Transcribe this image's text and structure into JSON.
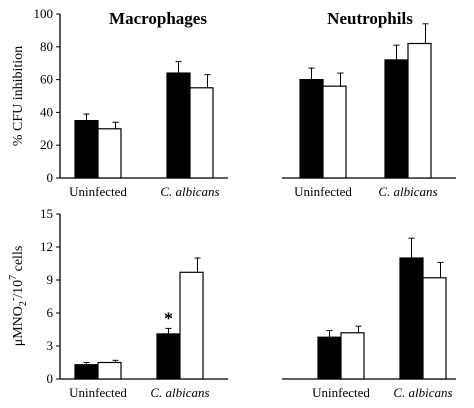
{
  "chart_data": [
    {
      "type": "bar",
      "panel": "top-left",
      "title": "Macrophages",
      "ylabel": "% CFU inhibition",
      "ylim": [
        0,
        100
      ],
      "yticks": [
        "0",
        "20",
        "40",
        "60",
        "80",
        "100"
      ],
      "categories": [
        "Uninfected",
        "C. albicans"
      ],
      "series": [
        {
          "color": "#000000",
          "values": [
            35,
            64
          ],
          "errors": [
            4,
            7
          ]
        },
        {
          "color": "#ffffff",
          "values": [
            30,
            55
          ],
          "errors": [
            4,
            8
          ]
        }
      ]
    },
    {
      "type": "bar",
      "panel": "top-right",
      "title": "Neutrophils",
      "ylim": [
        0,
        100
      ],
      "categories": [
        "Uninfected",
        "C. albicans"
      ],
      "series": [
        {
          "color": "#000000",
          "values": [
            60,
            72
          ],
          "errors": [
            7,
            9
          ]
        },
        {
          "color": "#ffffff",
          "values": [
            56,
            82
          ],
          "errors": [
            8,
            12
          ]
        }
      ]
    },
    {
      "type": "bar",
      "panel": "bottom-left",
      "ylabel_parts": {
        "base": "μMNO",
        "sub1": "2",
        "sup1": "-",
        "mid": "/10",
        "sup2": "7",
        "tail": " cells"
      },
      "ylim": [
        0,
        15
      ],
      "yticks": [
        "0",
        "3",
        "6",
        "9",
        "12",
        "15"
      ],
      "categories": [
        "Uninfected",
        "C. albicans"
      ],
      "series": [
        {
          "color": "#000000",
          "values": [
            1.3,
            4.1
          ],
          "errors": [
            0.2,
            0.5
          ]
        },
        {
          "color": "#ffffff",
          "values": [
            1.5,
            9.7
          ],
          "errors": [
            0.2,
            1.3
          ]
        }
      ],
      "annotation": "*"
    },
    {
      "type": "bar",
      "panel": "bottom-right",
      "ylim": [
        0,
        15
      ],
      "categories": [
        "Uninfected",
        "C. albicans"
      ],
      "series": [
        {
          "color": "#000000",
          "values": [
            3.8,
            11.0
          ],
          "errors": [
            0.6,
            1.8
          ]
        },
        {
          "color": "#ffffff",
          "values": [
            4.2,
            9.2
          ],
          "errors": [
            0.6,
            1.4
          ]
        }
      ]
    }
  ]
}
